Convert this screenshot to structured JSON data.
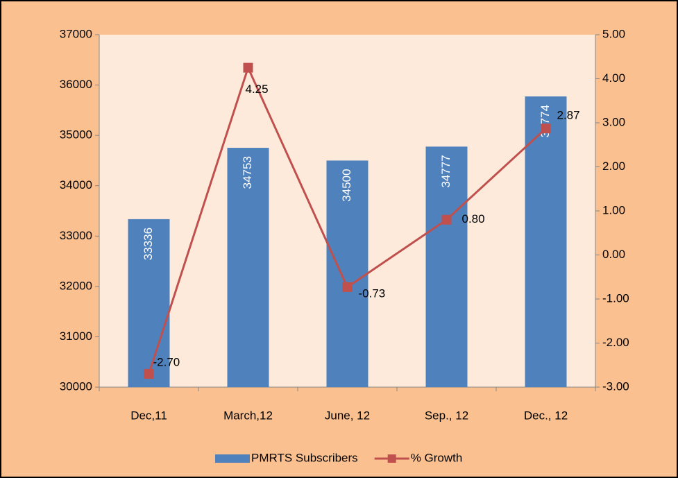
{
  "chart_data": {
    "type": "bar",
    "categories": [
      "Dec,11",
      "March,12",
      "June, 12",
      "Sep., 12",
      "Dec., 12"
    ],
    "series": [
      {
        "name": "PMRTS Subscribers",
        "type": "bar",
        "color": "#4f81bd",
        "values": [
          33336,
          34753,
          34500,
          34777,
          35774
        ]
      },
      {
        "name": "% Growth",
        "type": "line",
        "axis": "y2",
        "color": "#c0504d",
        "values": [
          -2.7,
          4.25,
          -0.73,
          0.8,
          2.87
        ],
        "value_labels": [
          "-2.70",
          "4.25",
          "-0.73",
          "0.80",
          "2.87"
        ]
      }
    ],
    "ylim": [
      30000,
      37000
    ],
    "yticks": [
      30000,
      31000,
      32000,
      33000,
      34000,
      35000,
      36000,
      37000
    ],
    "y2lim": [
      -3,
      5
    ],
    "y2ticks": [
      {
        "value": -3,
        "label": "-3.00"
      },
      {
        "value": -2,
        "label": "-2.00"
      },
      {
        "value": -1,
        "label": "-1.00"
      },
      {
        "value": 0,
        "label": "0.00"
      },
      {
        "value": 1,
        "label": "1.00"
      },
      {
        "value": 2,
        "label": "2.00"
      },
      {
        "value": 3,
        "label": "3.00"
      },
      {
        "value": 4,
        "label": "4.00"
      },
      {
        "value": 5,
        "label": "5.00"
      }
    ],
    "legend": "bottom"
  }
}
